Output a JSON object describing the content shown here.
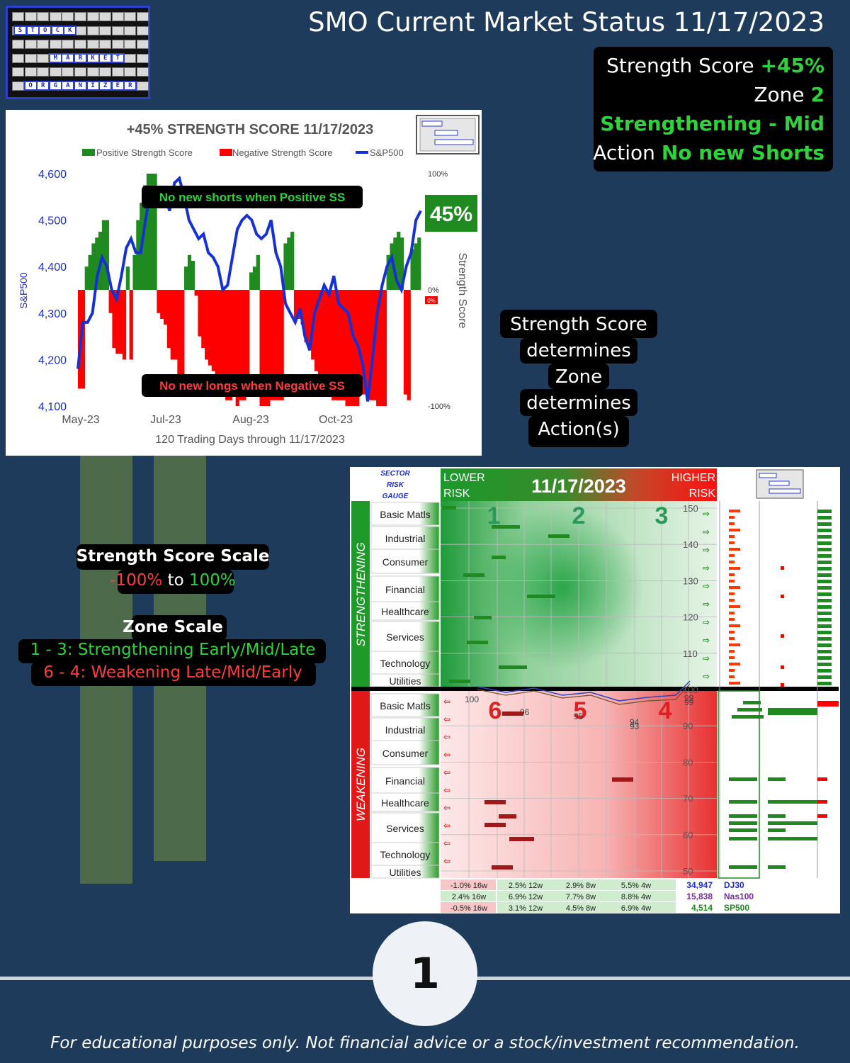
{
  "header": {
    "title": "SMO Current Market Status 11/17/2023"
  },
  "logo": {
    "row1": [
      "S",
      "T",
      "O",
      "C",
      "K"
    ],
    "row2": [
      "M",
      "A",
      "R",
      "K",
      "E",
      "T"
    ],
    "row3": [
      "O",
      "R",
      "G",
      "A",
      "N",
      "I",
      "Z",
      "E",
      "R"
    ]
  },
  "status": {
    "score_label": "Strength Score",
    "score_value": "+45%",
    "zone_label": "Zone",
    "zone_value": "2",
    "phase": "Strengthening - Mid",
    "action_label": "Action",
    "action_value": "No new Shorts"
  },
  "chart": {
    "title": "+45% STRENGTH SCORE 11/17/2023",
    "legend": [
      "Positive Strength Score",
      "Negative Strength Score",
      "S&P500"
    ],
    "ylabel_left": "S&P500",
    "ylabel_right": "Strength Score",
    "yticks_left": [
      "4,600",
      "4,500",
      "4,400",
      "4,300",
      "4,200",
      "4,100"
    ],
    "yticks_right": [
      "100%",
      "0%",
      "-100%"
    ],
    "xticks": [
      "May-23",
      "Jul-23",
      "Aug-23",
      "Oct-23"
    ],
    "xcaption": "120 Trading Days through 11/17/2023",
    "badge": "45%",
    "zero_badge": "0%",
    "note_positive": "No new shorts when Positive SS",
    "note_negative": "No new longs when Negative SS"
  },
  "chart_data": {
    "type": "bar",
    "title": "+45% STRENGTH SCORE 11/17/2023",
    "xlabel": "120 Trading Days through 11/17/2023",
    "ylabel": "S&P500",
    "ylabel_right": "Strength Score",
    "ylim": [
      4100,
      4600
    ],
    "ylim_right": [
      -100,
      100
    ],
    "x_tick_labels": [
      "May-23",
      "Jul-23",
      "Aug-23",
      "Oct-23"
    ],
    "legend": "top",
    "series": [
      {
        "name": "Strength Score",
        "values": [
          -85,
          -85,
          20,
          30,
          40,
          45,
          50,
          60,
          60,
          -20,
          -50,
          -55,
          -55,
          -60,
          20,
          -60,
          30,
          60,
          75,
          90,
          100,
          100,
          100,
          -20,
          -25,
          -30,
          -50,
          -60,
          -60,
          -75,
          -80,
          20,
          30,
          25,
          -5,
          -40,
          -50,
          -60,
          -65,
          -70,
          -75,
          -85,
          -90,
          -95,
          -95,
          -90,
          -100,
          -95,
          -95,
          -90,
          15,
          20,
          30,
          -100,
          -100,
          -100,
          -95,
          -95,
          -95,
          -95,
          40,
          45,
          50,
          -25,
          -25,
          -30,
          -45,
          -50,
          -60,
          -70,
          -80,
          -85,
          -90,
          -90,
          -95,
          -95,
          -95,
          -95,
          -100,
          -100,
          -100,
          -100,
          -90,
          -90,
          -90,
          -95,
          -95,
          -100,
          -100,
          -100,
          30,
          40,
          45,
          50,
          45,
          -90,
          -95,
          35,
          40,
          45
        ]
      },
      {
        "name": "S&P500",
        "values": [
          4180,
          4280,
          4280,
          4300,
          4380,
          4420,
          4400,
          4350,
          4330,
          4380,
          4440,
          4460,
          4430,
          4430,
          4500,
          4560,
          4530,
          4540,
          4550,
          4520,
          4580,
          4590,
          4550,
          4500,
          4480,
          4460,
          4470,
          4430,
          4420,
          4400,
          4350,
          4360,
          4420,
          4480,
          4500,
          4510,
          4500,
          4470,
          4460,
          4470,
          4500,
          4430,
          4400,
          4320,
          4300,
          4280,
          4310,
          4250,
          4220,
          4300,
          4330,
          4360,
          4340,
          4380,
          4320,
          4310,
          4300,
          4250,
          4230,
          4190,
          4110,
          4200,
          4300,
          4360,
          4400,
          4420,
          4370,
          4350,
          4400,
          4430,
          4500,
          4520
        ]
      }
    ]
  },
  "callout": [
    "Strength Score",
    "determines",
    "Zone",
    "determines",
    "Action(s)"
  ],
  "scale": {
    "title1": "Strength Score Scale",
    "range_min": "-100%",
    "range_to": "to",
    "range_max": "100%",
    "title2": "Zone Scale",
    "zones_up": "1 - 3: Strengthening Early/Mid/Late",
    "zones_down": "6 - 4: Weakening Late/Mid/Early"
  },
  "gauge": {
    "corner_label": [
      "SECTOR",
      "RISK",
      "GAUGE"
    ],
    "lower": [
      "LOWER",
      "RISK"
    ],
    "higher": [
      "HIGHER",
      "RISK"
    ],
    "date": "11/17/2023",
    "side_top": "STRENGTHENING",
    "side_bottom": "WEAKENING",
    "sectors": [
      "Basic Matls",
      "Industrial",
      "Consumer",
      "Financial",
      "Healthcare",
      "Services",
      "Technology",
      "Utilities"
    ],
    "zones_top": [
      "1",
      "2",
      "3"
    ],
    "zones_bottom": [
      "6",
      "5",
      "4"
    ],
    "yticks": [
      "150",
      "140",
      "130",
      "120",
      "110",
      "100",
      "90",
      "80",
      "70",
      "60",
      "50"
    ],
    "line_labels": [
      "100",
      "96",
      "95",
      "94",
      "93",
      "99",
      "99"
    ],
    "perf_rows": [
      {
        "w16": "-1.0% 16w",
        "w12": "2.5% 12w",
        "w8": "2.9% 8w",
        "w4": "5.5% 4w",
        "value": "34,947",
        "index": "DJ30"
      },
      {
        "w16": "2.4% 16w",
        "w12": "6.9% 12w",
        "w8": "7.7% 8w",
        "w4": "8.8% 4w",
        "value": "15,838",
        "index": "Nas100"
      },
      {
        "w16": "-0.5% 16w",
        "w12": "3.1% 12w",
        "w8": "4.5% 8w",
        "w4": "6.9% 4w",
        "value": "4,514",
        "index": "SP500"
      }
    ]
  },
  "page_number": "1",
  "footer": "For educational purposes only. Not financial advice or a stock/investment recommendation."
}
